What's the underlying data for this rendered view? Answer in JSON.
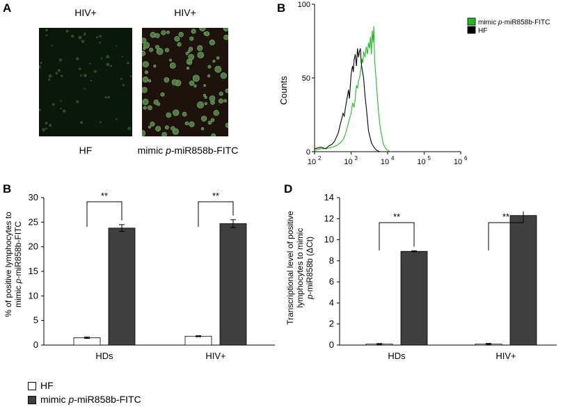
{
  "panels": {
    "A": {
      "label": "A",
      "images": [
        {
          "title": "HIV+",
          "caption": "HF"
        },
        {
          "title": "HIV+",
          "caption_prefix": "mimic ",
          "caption_italic": "p",
          "caption_suffix": "-miR858b-FITC"
        }
      ]
    },
    "B_top": {
      "label": "B"
    },
    "B_bottom": {
      "label": "B"
    },
    "D": {
      "label": "D"
    }
  },
  "legend_bottom": {
    "items": [
      {
        "text": "HF",
        "color": "#ffffff"
      },
      {
        "text_prefix": "mimic ",
        "text_italic": "p",
        "text_suffix": "-miR858b-FITC",
        "color": "#3f3f3f"
      }
    ]
  },
  "chart_data": [
    {
      "type": "line",
      "panel": "B (top)",
      "ylabel": "Counts",
      "xscale": "log",
      "xlim": [
        100,
        1000000
      ],
      "ylim": [
        0,
        100
      ],
      "xticks": [
        "10",
        "10",
        "10",
        "10",
        "10"
      ],
      "xtick_exps": [
        "2",
        "3",
        "4",
        "5",
        "6"
      ],
      "yticks": [
        "0",
        "50",
        "100"
      ],
      "legend": {
        "placement": "top-right",
        "items": [
          {
            "prefix": "mimic ",
            "italic": "p",
            "suffix": "-miR858b-FITC",
            "color": "#22bb22"
          },
          {
            "prefix": "HF",
            "italic": "",
            "suffix": "",
            "color": "#000000"
          }
        ]
      },
      "series": [
        {
          "name": "mimic p-miR858b-FITC",
          "color": "#22bb22",
          "x": [
            100,
            150,
            200,
            300,
            400,
            500,
            600,
            700,
            800,
            900,
            1000,
            1100,
            1200,
            1300,
            1400,
            1500,
            1600,
            1700,
            1800,
            1900,
            2000,
            2100,
            2200,
            2400,
            2600,
            2800,
            3000,
            3200,
            3400,
            3600,
            3800,
            4000,
            4200,
            4400,
            4600,
            4800,
            5000,
            5300,
            5600,
            6000,
            6500,
            7000,
            7500,
            8000,
            9000,
            10000,
            12000
          ],
          "y": [
            1,
            2,
            2,
            3,
            4,
            6,
            8,
            12,
            17,
            22,
            26,
            33,
            30,
            36,
            45,
            43,
            48,
            50,
            54,
            58,
            63,
            60,
            68,
            64,
            71,
            66,
            74,
            70,
            78,
            66,
            82,
            74,
            85,
            62,
            56,
            50,
            44,
            36,
            28,
            20,
            14,
            10,
            6,
            4,
            2,
            1,
            0
          ]
        },
        {
          "name": "HF",
          "color": "#000000",
          "x": [
            100,
            150,
            200,
            250,
            300,
            350,
            400,
            450,
            500,
            550,
            600,
            650,
            700,
            750,
            800,
            850,
            900,
            950,
            1000,
            1050,
            1100,
            1150,
            1200,
            1300,
            1400,
            1500,
            1600,
            1700,
            1800,
            1900,
            2000,
            2200,
            2400,
            2600,
            2800,
            3000,
            3300,
            3600,
            4000,
            4500,
            5000,
            6000
          ],
          "y": [
            2,
            3,
            2,
            4,
            5,
            7,
            10,
            13,
            18,
            22,
            26,
            24,
            30,
            34,
            38,
            42,
            36,
            44,
            52,
            56,
            58,
            54,
            62,
            66,
            58,
            70,
            64,
            68,
            70,
            60,
            56,
            50,
            38,
            30,
            22,
            14,
            10,
            6,
            4,
            2,
            1,
            0
          ]
        }
      ]
    },
    {
      "type": "bar",
      "panel": "B (bottom)",
      "categories": [
        "HDs",
        "HIV+"
      ],
      "ylabel_line1": "% of positive lymphocytes to",
      "ylabel_line2_prefix": "mimic ",
      "ylabel_line2_italic": "p",
      "ylabel_line2_suffix": "-miR858b-FITC",
      "ylim": [
        0,
        30
      ],
      "yticks": [
        "0",
        "5",
        "10",
        "15",
        "20",
        "25",
        "30"
      ],
      "series": [
        {
          "name": "HF",
          "values": [
            1.5,
            1.8
          ],
          "errors": [
            0.15,
            0.1
          ],
          "color": "#ffffff"
        },
        {
          "name": "mimic p-miR858b-FITC",
          "values": [
            23.8,
            24.7
          ],
          "errors": [
            0.7,
            0.8
          ],
          "color": "#3f3f3f"
        }
      ],
      "significance": [
        "**",
        "**"
      ]
    },
    {
      "type": "bar",
      "panel": "D",
      "categories": [
        "HDs",
        "HIV+"
      ],
      "ylabel_line1": "Transcriptional level of positive",
      "ylabel_line2": "lymphocytes to mimic",
      "ylabel_line3_italic": "p",
      "ylabel_line3_suffix": "-miR858b (ΔCt)",
      "ylim": [
        0,
        14
      ],
      "yticks": [
        "0",
        "2",
        "4",
        "6",
        "8",
        "10",
        "12",
        "14"
      ],
      "series": [
        {
          "name": "HF",
          "values": [
            0.1,
            0.1
          ],
          "errors": [
            0.05,
            0.06
          ],
          "color": "#ffffff"
        },
        {
          "name": "mimic p-miR858b-FITC",
          "values": [
            8.9,
            12.3
          ],
          "errors": [
            0.05,
            0.0
          ],
          "color": "#3f3f3f"
        }
      ],
      "significance": [
        "**",
        "**"
      ]
    }
  ]
}
